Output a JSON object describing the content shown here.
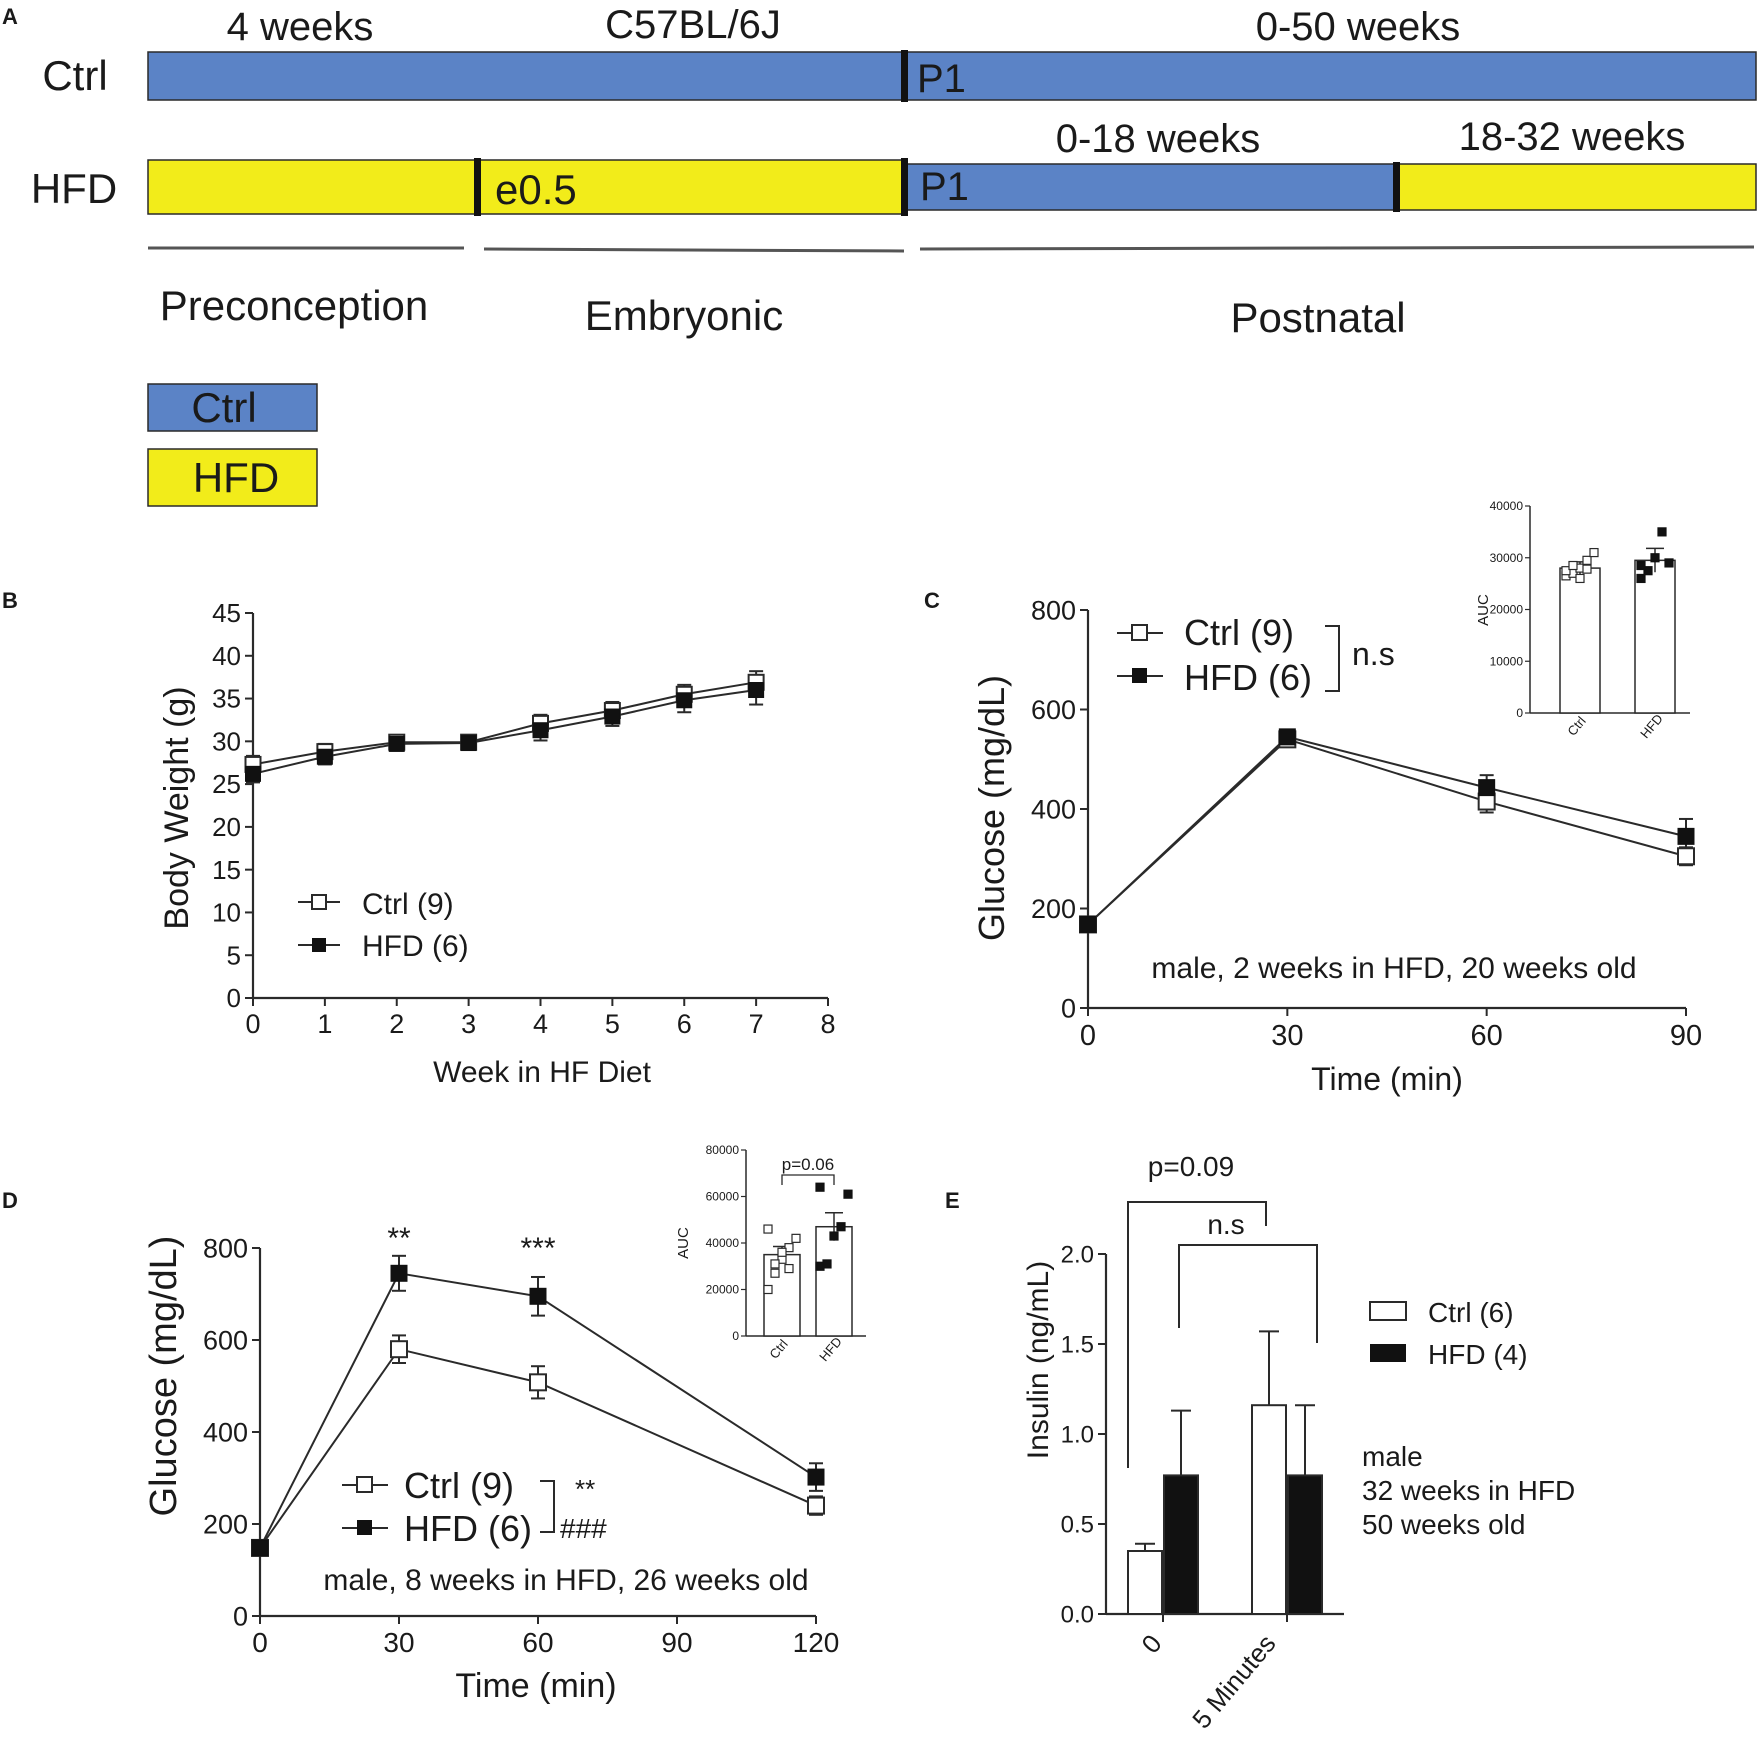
{
  "colors": {
    "ctrl": "#5b83c6",
    "hfd": "#f2ec1a",
    "ink": "#1a1a1a",
    "axis": "#2a2a2a"
  },
  "panel_a": {
    "label": "A",
    "strain": "C57BL/6J",
    "ctrl_row": {
      "label": "Ctrl",
      "pre_duration": "4 weeks",
      "post_duration": "0-50 weeks",
      "birth_marker": "P1"
    },
    "hfd_row": {
      "label": "HFD",
      "mating_marker": "e0.5",
      "birth_marker": "P1",
      "post_duration_1": "0-18 weeks",
      "post_duration_2": "18-32 weeks"
    },
    "phases": [
      "Preconception",
      "Embryonic",
      "Postnatal"
    ],
    "legend": [
      "Ctrl",
      "HFD"
    ]
  },
  "chart_data": [
    {
      "panel": "B",
      "type": "line",
      "xlabel": "Week in HF Diet",
      "ylabel": "Body Weight (g)",
      "xlim": [
        0,
        8
      ],
      "ylim": [
        0,
        45
      ],
      "xticks": [
        "0",
        "1",
        "2",
        "3",
        "4",
        "5",
        "6",
        "7",
        "8"
      ],
      "yticks": [
        "0",
        "5",
        "10",
        "15",
        "20",
        "25",
        "30",
        "35",
        "40",
        "45"
      ],
      "series": [
        {
          "name": "Ctrl (9)",
          "marker": "open-square",
          "x": [
            0,
            1,
            2,
            3,
            4,
            5,
            6,
            7
          ],
          "y": [
            27.3,
            28.8,
            29.9,
            29.9,
            32.1,
            33.6,
            35.5,
            36.9
          ],
          "err": [
            1.0,
            0.9,
            0.8,
            0.8,
            1.0,
            1.0,
            1.1,
            1.3
          ]
        },
        {
          "name": "HFD (6)",
          "marker": "filled-square",
          "x": [
            0,
            1,
            2,
            3,
            4,
            5,
            6,
            7
          ],
          "y": [
            26.2,
            28.2,
            29.7,
            29.8,
            31.3,
            32.9,
            34.8,
            36.0
          ],
          "err": [
            1.0,
            0.9,
            0.8,
            0.8,
            1.2,
            1.1,
            1.4,
            1.7
          ]
        }
      ]
    },
    {
      "panel": "C",
      "type": "line",
      "xlabel": "Time (min)",
      "ylabel": "Glucose (mg/dL)",
      "xlim": [
        0,
        90
      ],
      "ylim": [
        0,
        800
      ],
      "xticks": [
        "0",
        "30",
        "60",
        "90"
      ],
      "yticks": [
        "0",
        "200",
        "400",
        "600",
        "800"
      ],
      "significance": "n.s",
      "annotation": "male, 2 weeks in HFD, 20 weeks old",
      "series": [
        {
          "name": "Ctrl (9)",
          "marker": "open-square",
          "x": [
            0,
            30,
            60,
            90
          ],
          "y": [
            168,
            540,
            415,
            305
          ],
          "err": [
            8,
            12,
            22,
            18
          ]
        },
        {
          "name": "HFD (6)",
          "marker": "filled-square",
          "x": [
            0,
            30,
            60,
            90
          ],
          "y": [
            168,
            545,
            443,
            345
          ],
          "err": [
            8,
            10,
            25,
            35
          ]
        }
      ],
      "inset": {
        "type": "bar",
        "ylabel": "AUC",
        "ylim": [
          0,
          40000
        ],
        "yticks": [
          "0",
          "10000",
          "20000",
          "30000",
          "40000"
        ],
        "categories": [
          "Ctrl",
          "HFD"
        ],
        "values": [
          28000,
          29500
        ],
        "err": [
          1200,
          2300
        ],
        "points": [
          [
            26500,
            27000,
            28000,
            29500,
            31000,
            27500,
            28500,
            26000,
            27800
          ],
          [
            26000,
            27500,
            30000,
            35000,
            29000,
            28500
          ]
        ]
      }
    },
    {
      "panel": "D",
      "type": "line",
      "xlabel": "Time (min)",
      "ylabel": "Glucose (mg/dL)",
      "xlim": [
        0,
        120
      ],
      "ylim": [
        0,
        800
      ],
      "xticks": [
        "0",
        "30",
        "60",
        "90",
        "120"
      ],
      "yticks": [
        "0",
        "200",
        "400",
        "600",
        "800"
      ],
      "point_marks": [
        "**",
        "***"
      ],
      "significance": [
        "**",
        "###"
      ],
      "annotation": "male, 8 weeks in HFD, 26 weeks old",
      "series": [
        {
          "name": "Ctrl (9)",
          "marker": "open-square",
          "x": [
            0,
            30,
            60,
            120
          ],
          "y": [
            148,
            580,
            508,
            240
          ],
          "err": [
            8,
            30,
            35,
            20
          ]
        },
        {
          "name": "HFD (6)",
          "marker": "filled-square",
          "x": [
            0,
            30,
            60,
            120
          ],
          "y": [
            148,
            745,
            695,
            302
          ],
          "err": [
            8,
            38,
            42,
            30
          ]
        }
      ],
      "inset": {
        "type": "bar",
        "ylabel": "AUC",
        "ylim": [
          0,
          80000
        ],
        "yticks": [
          "0",
          "20000",
          "40000",
          "60000",
          "80000"
        ],
        "categories": [
          "Ctrl",
          "HFD"
        ],
        "values": [
          35000,
          47000
        ],
        "err": [
          3500,
          6000
        ],
        "significance": "p=0.06",
        "points": [
          [
            20000,
            27000,
            33000,
            38000,
            42000,
            46000,
            31000,
            36000,
            29000
          ],
          [
            30000,
            31000,
            43000,
            47000,
            61000,
            64000
          ]
        ]
      }
    },
    {
      "panel": "E",
      "type": "bar",
      "xlabel": "",
      "ylabel": "Insulin (ng/mL)",
      "ylim": [
        0,
        2.0
      ],
      "yticks": [
        "0.0",
        "0.5",
        "1.0",
        "1.5",
        "2.0"
      ],
      "categories": [
        "0",
        "5 Minutes"
      ],
      "series": [
        {
          "name": "Ctrl (6)",
          "values": [
            0.35,
            1.16
          ],
          "err": [
            0.04,
            0.41
          ]
        },
        {
          "name": "HFD (4)",
          "values": [
            0.77,
            0.77
          ],
          "err": [
            0.36,
            0.39
          ]
        }
      ],
      "brackets": [
        "p=0.09",
        "n.s"
      ],
      "annotation": [
        "male",
        "32 weeks in HFD",
        "50 weeks old"
      ]
    }
  ]
}
